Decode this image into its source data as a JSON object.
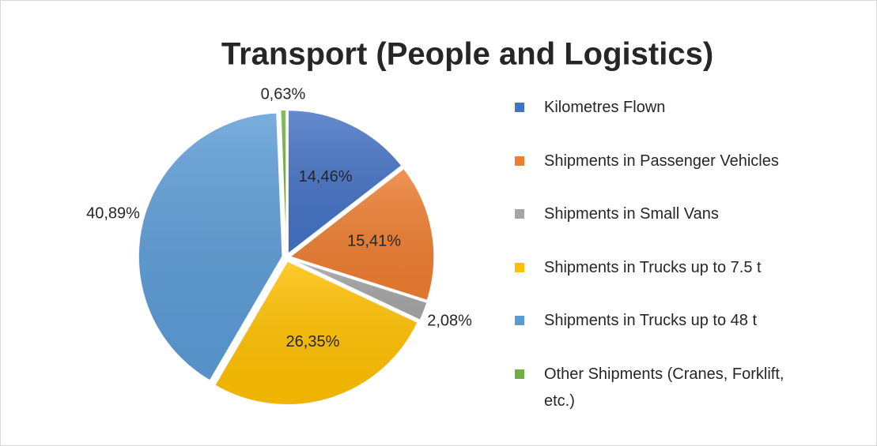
{
  "chart_data": {
    "type": "pie",
    "title": "Transport (People and Logistics)",
    "categories": [
      "Kilometres Flown",
      "Shipments in Passenger Vehicles",
      "Shipments in Small Vans",
      "Shipments in Trucks up to 7.5 t",
      "Shipments in Trucks up to 48 t",
      "Other Shipments (Cranes, Forklift, etc.)"
    ],
    "values": [
      14.46,
      15.41,
      2.08,
      26.35,
      40.89,
      0.63
    ],
    "value_labels": [
      "14,46%",
      "15,41%",
      "2,08%",
      "26,35%",
      "40,89%",
      "0,63%"
    ],
    "colors": [
      "#4472c4",
      "#ed7d31",
      "#a5a5a5",
      "#ffc000",
      "#5b9bd5",
      "#70ad47"
    ],
    "legend": "right"
  }
}
